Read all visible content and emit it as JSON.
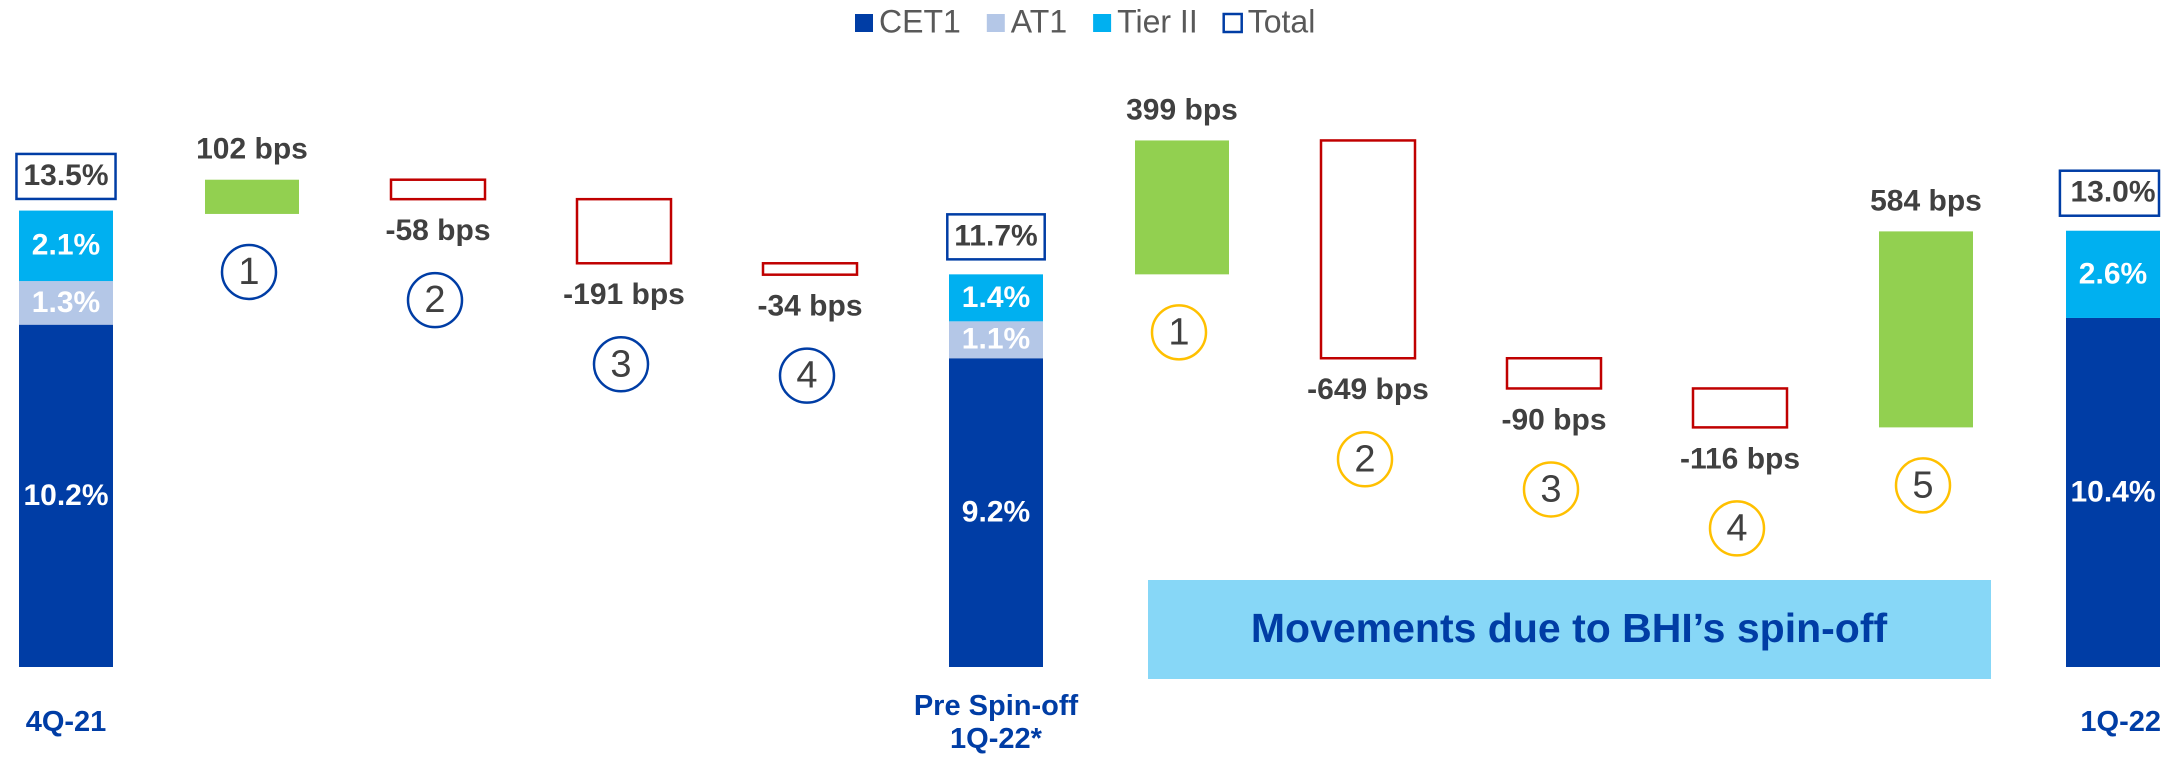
{
  "chart_data": {
    "type": "waterfall",
    "categories": [
      "4Q-21",
      "Pre Spin-off 1Q-22*",
      "1Q-22"
    ],
    "series": [
      {
        "name": "CET1",
        "color": "#003DA5",
        "values": [
          10.2,
          9.2,
          10.4
        ],
        "value_labels": [
          "10.2%",
          "9.2%",
          "10.4%"
        ]
      },
      {
        "name": "AT1",
        "color": "#B4C7E7",
        "values": [
          1.3,
          1.1,
          null
        ],
        "value_labels": [
          "1.3%",
          "1.1%",
          null
        ]
      },
      {
        "name": "Tier II",
        "color": "#00B0F0",
        "values": [
          2.1,
          1.4,
          2.6
        ],
        "value_labels": [
          "2.1%",
          "1.4%",
          "2.6%"
        ]
      },
      {
        "name": "Total",
        "color": "#003DA5",
        "values": [
          13.5,
          11.7,
          13.0
        ],
        "value_labels": [
          "13.5%",
          "11.7%",
          "13.0%"
        ]
      }
    ],
    "movements": [
      {
        "steps": [
          "1",
          "2",
          "3",
          "4"
        ],
        "values": [
          102,
          -58,
          -191,
          -34
        ],
        "value_labels": [
          "102 bps",
          "-58 bps",
          "-191 bps",
          "-34 bps"
        ],
        "circle_color": "#003DA5"
      },
      {
        "steps": [
          "1",
          "2",
          "3",
          "4",
          "5"
        ],
        "values": [
          399,
          -649,
          -90,
          -116,
          584
        ],
        "value_labels": [
          "399 bps",
          "-649 bps",
          "-90 bps",
          "-116 bps",
          "584 bps"
        ],
        "circle_color": "#FFC000"
      }
    ],
    "increase_color": "#92D050",
    "decrease_color": "#C00000",
    "annotation": "Movements due to BHI’s spin-off"
  }
}
